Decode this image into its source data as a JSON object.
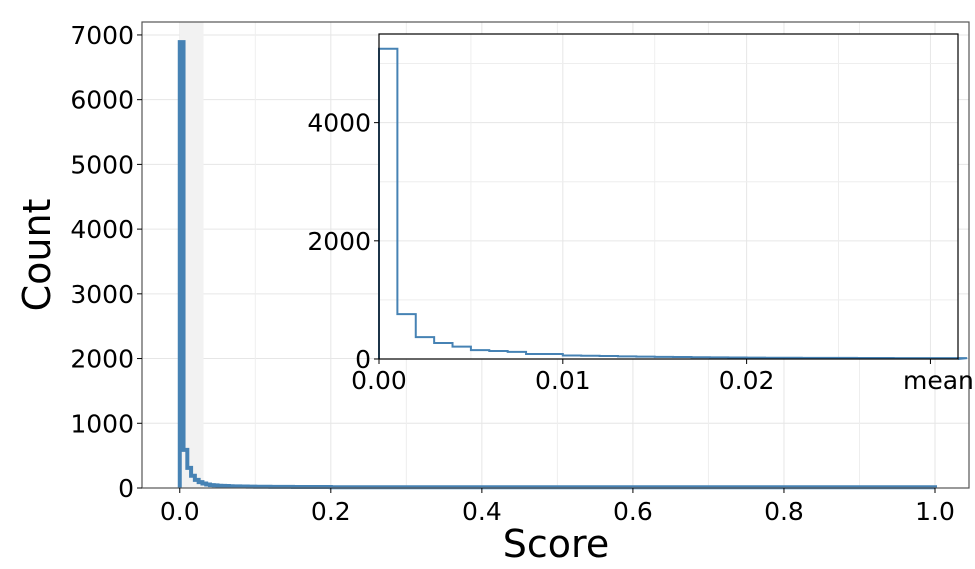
{
  "chart_data": [
    {
      "type": "bar",
      "subtype": "step-histogram",
      "role": "main",
      "title": "",
      "xlabel": "Score",
      "ylabel": "Count",
      "xlim": [
        -0.05,
        1.045
      ],
      "ylim": [
        0,
        7200
      ],
      "xticks": [
        0.0,
        0.2,
        0.4,
        0.6,
        0.8,
        1.0
      ],
      "xtick_labels": [
        "0.0",
        "0.2",
        "0.4",
        "0.6",
        "0.8",
        "1.0"
      ],
      "yticks": [
        0,
        1000,
        2000,
        3000,
        4000,
        5000,
        6000,
        7000
      ],
      "ytick_labels": [
        "0",
        "1000",
        "2000",
        "3000",
        "4000",
        "5000",
        "6000",
        "7000"
      ],
      "grid": true,
      "shaded_region": {
        "x0": 0.0,
        "x1": 0.0315,
        "color": "#f2f2f2"
      },
      "bin_width": 0.005,
      "bin_start": 0.0,
      "values": [
        6890,
        590,
        310,
        190,
        125,
        90,
        70,
        55,
        45,
        40,
        35,
        32,
        30,
        28,
        26,
        25,
        24,
        23,
        22,
        21,
        20,
        20,
        19,
        19,
        18,
        18,
        18,
        17,
        17,
        17,
        16,
        16,
        16,
        16,
        15,
        15,
        15,
        15,
        15,
        15
      ],
      "tail_value": 12,
      "tail_end": 1.0,
      "color": "#4682b4",
      "line_width": 4
    },
    {
      "type": "bar",
      "subtype": "step-histogram",
      "role": "inset",
      "title": "",
      "xlabel": "",
      "ylabel": "",
      "xlim": [
        0.0,
        0.0315
      ],
      "ylim": [
        0,
        5500
      ],
      "xticks": [
        0.0,
        0.01,
        0.02,
        0.03
      ],
      "xtick_labels": [
        "0.00",
        "0.01",
        "0.02",
        "mean"
      ],
      "yticks": [
        0,
        2000,
        4000
      ],
      "ytick_labels": [
        "0",
        "2000",
        "4000"
      ],
      "grid": true,
      "bin_width": 0.001,
      "bin_start": 0.0,
      "values": [
        5250,
        760,
        370,
        270,
        210,
        150,
        135,
        120,
        85,
        85,
        60,
        55,
        50,
        45,
        40,
        36,
        33,
        30,
        28,
        26,
        24,
        22,
        21,
        20,
        19,
        18,
        17,
        16,
        15,
        15,
        14,
        14
      ],
      "color": "#4682b4",
      "line_width": 2
    }
  ],
  "labels": {
    "xlabel": "Score",
    "ylabel": "Count",
    "inset_mean_label": "mean"
  }
}
